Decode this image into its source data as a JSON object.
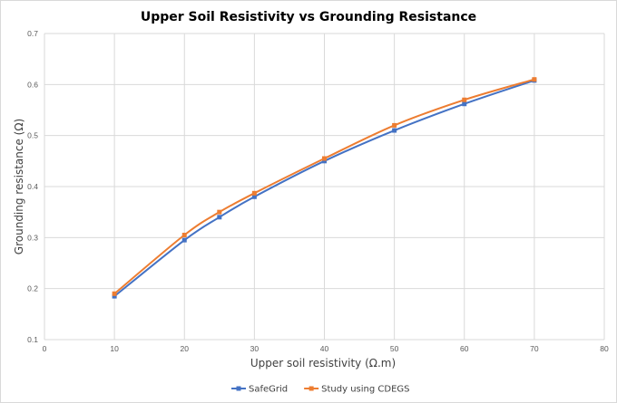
{
  "chart_data": {
    "type": "line",
    "title": "Upper Soil Resistivity vs Grounding Resistance",
    "xlabel": "Upper soil resistivity (Ω.m)",
    "ylabel": "Grounding resistance (Ω)",
    "xlim": [
      0,
      80
    ],
    "ylim": [
      0.1,
      0.7
    ],
    "xticks": [
      "0",
      "10",
      "20",
      "30",
      "40",
      "50",
      "60",
      "70",
      "80"
    ],
    "yticks": [
      "0.1",
      "0.2",
      "0.3",
      "0.4",
      "0.5",
      "0.6",
      "0.7"
    ],
    "grid": "vertical and horizontal major gridlines",
    "legend_position": "bottom",
    "series": [
      {
        "name": "SafeGrid",
        "color": "#4472C4",
        "marker": "square",
        "x": [
          10,
          20,
          25,
          30,
          40,
          50,
          60,
          70
        ],
        "y": [
          0.185,
          0.295,
          0.34,
          0.38,
          0.45,
          0.51,
          0.562,
          0.608
        ]
      },
      {
        "name": "Study using CDEGS",
        "color": "#ED7D31",
        "marker": "square",
        "x": [
          10,
          20,
          25,
          30,
          40,
          50,
          60,
          70
        ],
        "y": [
          0.19,
          0.305,
          0.35,
          0.387,
          0.455,
          0.52,
          0.57,
          0.61
        ]
      }
    ]
  }
}
